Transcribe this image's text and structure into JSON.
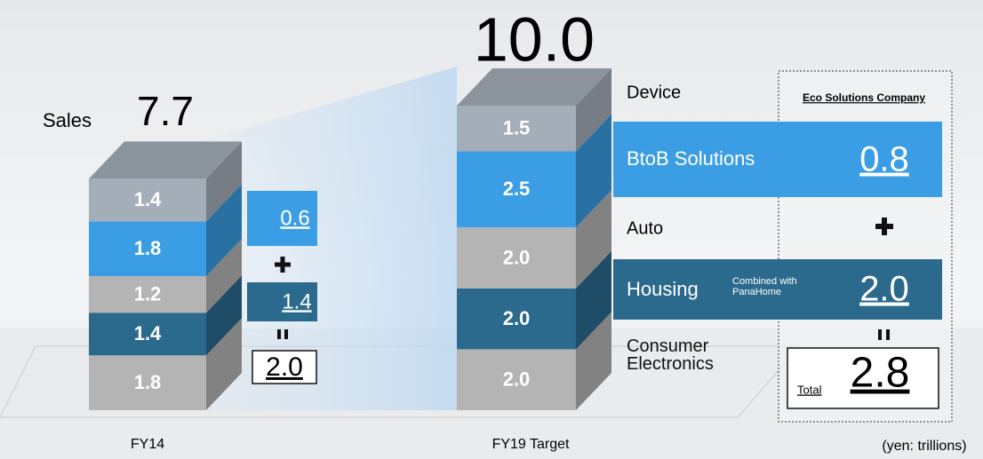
{
  "chart_data": {
    "type": "stacked-bar-3d",
    "title": "Sales",
    "unit_note": "(yen: trillions)",
    "categories": [
      "FY14",
      "FY19 Target"
    ],
    "series": [
      {
        "name": "Consumer Electronics",
        "color": "#b4b4b4",
        "values": [
          1.8,
          2
        ],
        "value_labels": [
          "1.8",
          "2.0"
        ]
      },
      {
        "name": "Housing",
        "color": "#2b6a8d",
        "values": [
          1.4,
          2
        ],
        "value_labels": [
          "1.4",
          "2.0"
        ]
      },
      {
        "name": "Auto",
        "color": "#b4b4b4",
        "values": [
          1.2,
          2
        ],
        "value_labels": [
          "1.2",
          "2.0"
        ]
      },
      {
        "name": "BtoB Solutions",
        "color": "#3b9de3",
        "values": [
          1.8,
          2.5
        ],
        "value_labels": [
          "1.8",
          "2.5"
        ]
      },
      {
        "name": "Device",
        "color": "#a4aeb8",
        "values": [
          1.4,
          1.5
        ],
        "value_labels": [
          "1.4",
          "1.5"
        ]
      }
    ],
    "totals": {
      "values": [
        7.7,
        10
      ],
      "value_labels": [
        "7.7",
        "10.0"
      ]
    }
  },
  "fy14_eco": {
    "btob": "0.6",
    "housing": "1.4",
    "total": "2.0"
  },
  "eco_panel": {
    "title": "Eco Solutions Company",
    "btob": "0.8",
    "housing": "2.0",
    "housing_note": "Combined with PanaHome",
    "total_label": "Total",
    "total": "2.8"
  }
}
